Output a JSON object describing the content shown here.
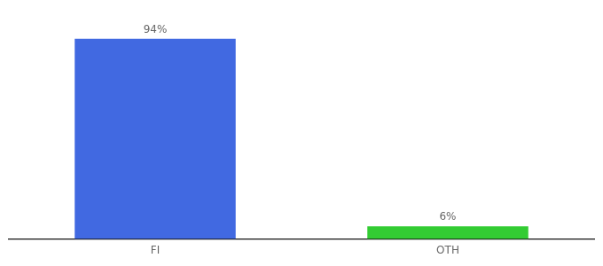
{
  "chart_data": {
    "type": "bar",
    "categories": [
      "FI",
      "OTH"
    ],
    "values": [
      94,
      6
    ],
    "value_labels": [
      "94%",
      "6%"
    ],
    "colors": [
      "#4169e1",
      "#33cc33"
    ],
    "ylim": [
      0,
      108
    ],
    "data_labels": true,
    "tick_labels": "x",
    "grid": false
  }
}
